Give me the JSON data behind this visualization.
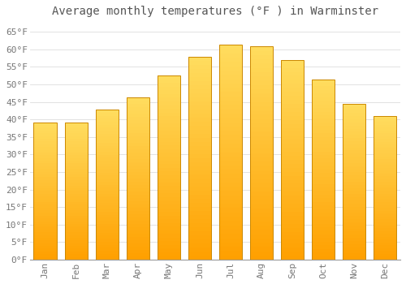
{
  "title": "Average monthly temperatures (°F ) in Warminster",
  "months": [
    "Jan",
    "Feb",
    "Mar",
    "Apr",
    "May",
    "Jun",
    "Jul",
    "Aug",
    "Sep",
    "Oct",
    "Nov",
    "Dec"
  ],
  "values": [
    39.2,
    39.2,
    42.8,
    46.4,
    52.5,
    57.9,
    61.3,
    60.8,
    57.0,
    51.5,
    44.5,
    41.0
  ],
  "bar_color_bottom": "#FFA500",
  "bar_color_top": "#FFD966",
  "bar_edge_color": "#CC8800",
  "background_color": "#FFFFFF",
  "grid_color": "#DDDDDD",
  "text_color": "#777777",
  "title_color": "#555555",
  "ylim": [
    0,
    68
  ],
  "yticks": [
    0,
    5,
    10,
    15,
    20,
    25,
    30,
    35,
    40,
    45,
    50,
    55,
    60,
    65
  ],
  "title_fontsize": 10,
  "tick_fontsize": 8,
  "font_family": "monospace",
  "bar_width": 0.75
}
